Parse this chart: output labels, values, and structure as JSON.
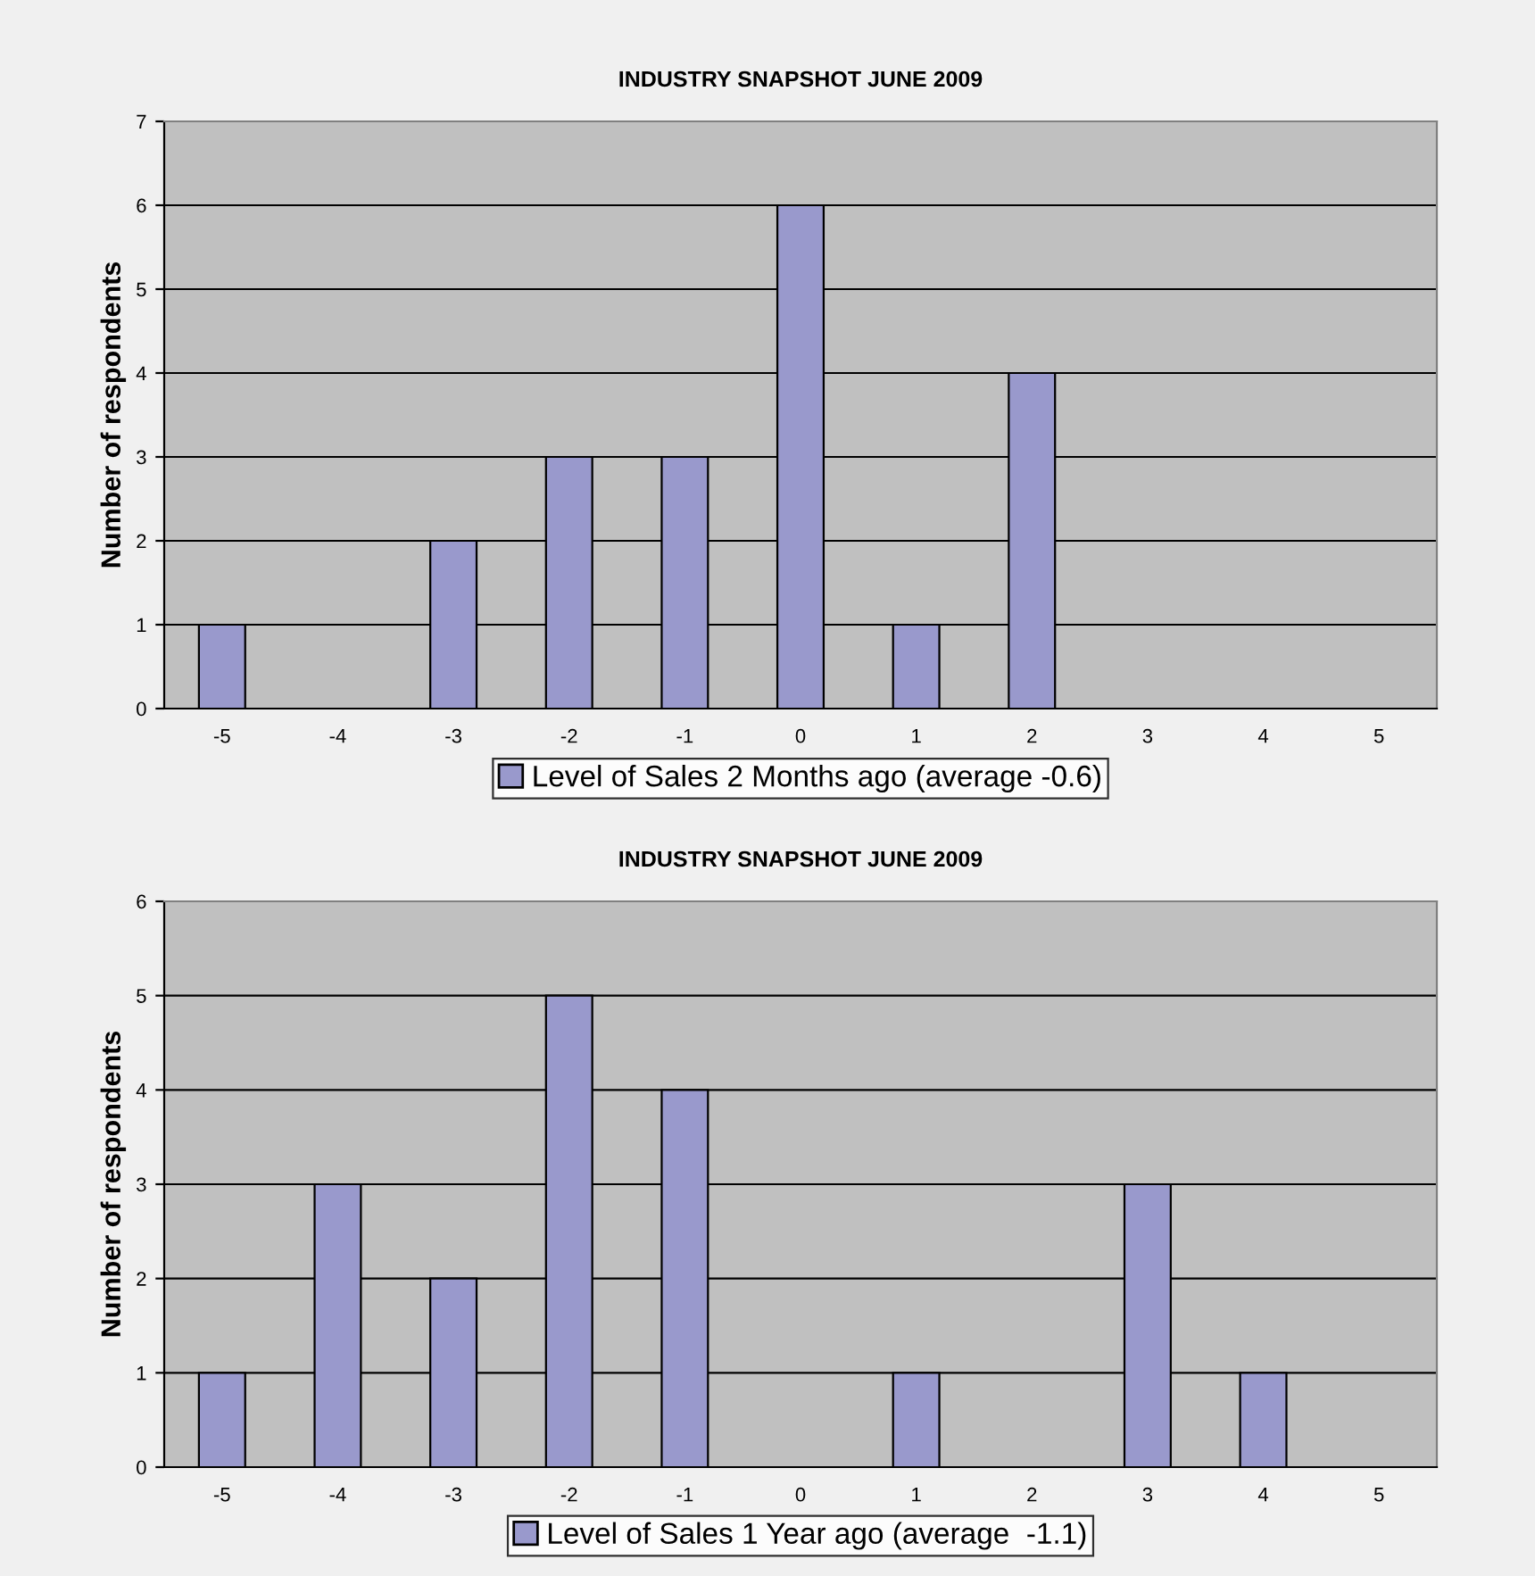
{
  "chart_data": [
    {
      "type": "bar",
      "title": "INDUSTRY SNAPSHOT JUNE 2009",
      "ylabel": "Number of respondents",
      "categories": [
        "-5",
        "-4",
        "-3",
        "-2",
        "-1",
        "0",
        "1",
        "2",
        "3",
        "4",
        "5"
      ],
      "series": [
        {
          "name": "Level of Sales 2 Months ago (average -0.6)",
          "color": "#9999cc",
          "values": [
            1,
            0,
            2,
            3,
            3,
            6,
            1,
            4,
            0,
            0,
            0
          ]
        }
      ],
      "ylim": [
        0,
        7
      ],
      "yticks": [
        0,
        1,
        2,
        3,
        4,
        5,
        6,
        7
      ],
      "grid": "y",
      "legend": "bottom"
    },
    {
      "type": "bar",
      "title": "INDUSTRY SNAPSHOT JUNE 2009",
      "ylabel": "Number of respondents",
      "categories": [
        "-5",
        "-4",
        "-3",
        "-2",
        "-1",
        "0",
        "1",
        "2",
        "3",
        "4",
        "5"
      ],
      "series": [
        {
          "name": "Level of Sales 1 Year ago (average  -1.1)",
          "color": "#9999cc",
          "values": [
            1,
            3,
            2,
            5,
            4,
            0,
            1,
            0,
            3,
            1,
            0
          ]
        }
      ],
      "ylim": [
        0,
        6
      ],
      "yticks": [
        0,
        1,
        2,
        3,
        4,
        5,
        6
      ],
      "grid": "y",
      "legend": "bottom"
    }
  ]
}
